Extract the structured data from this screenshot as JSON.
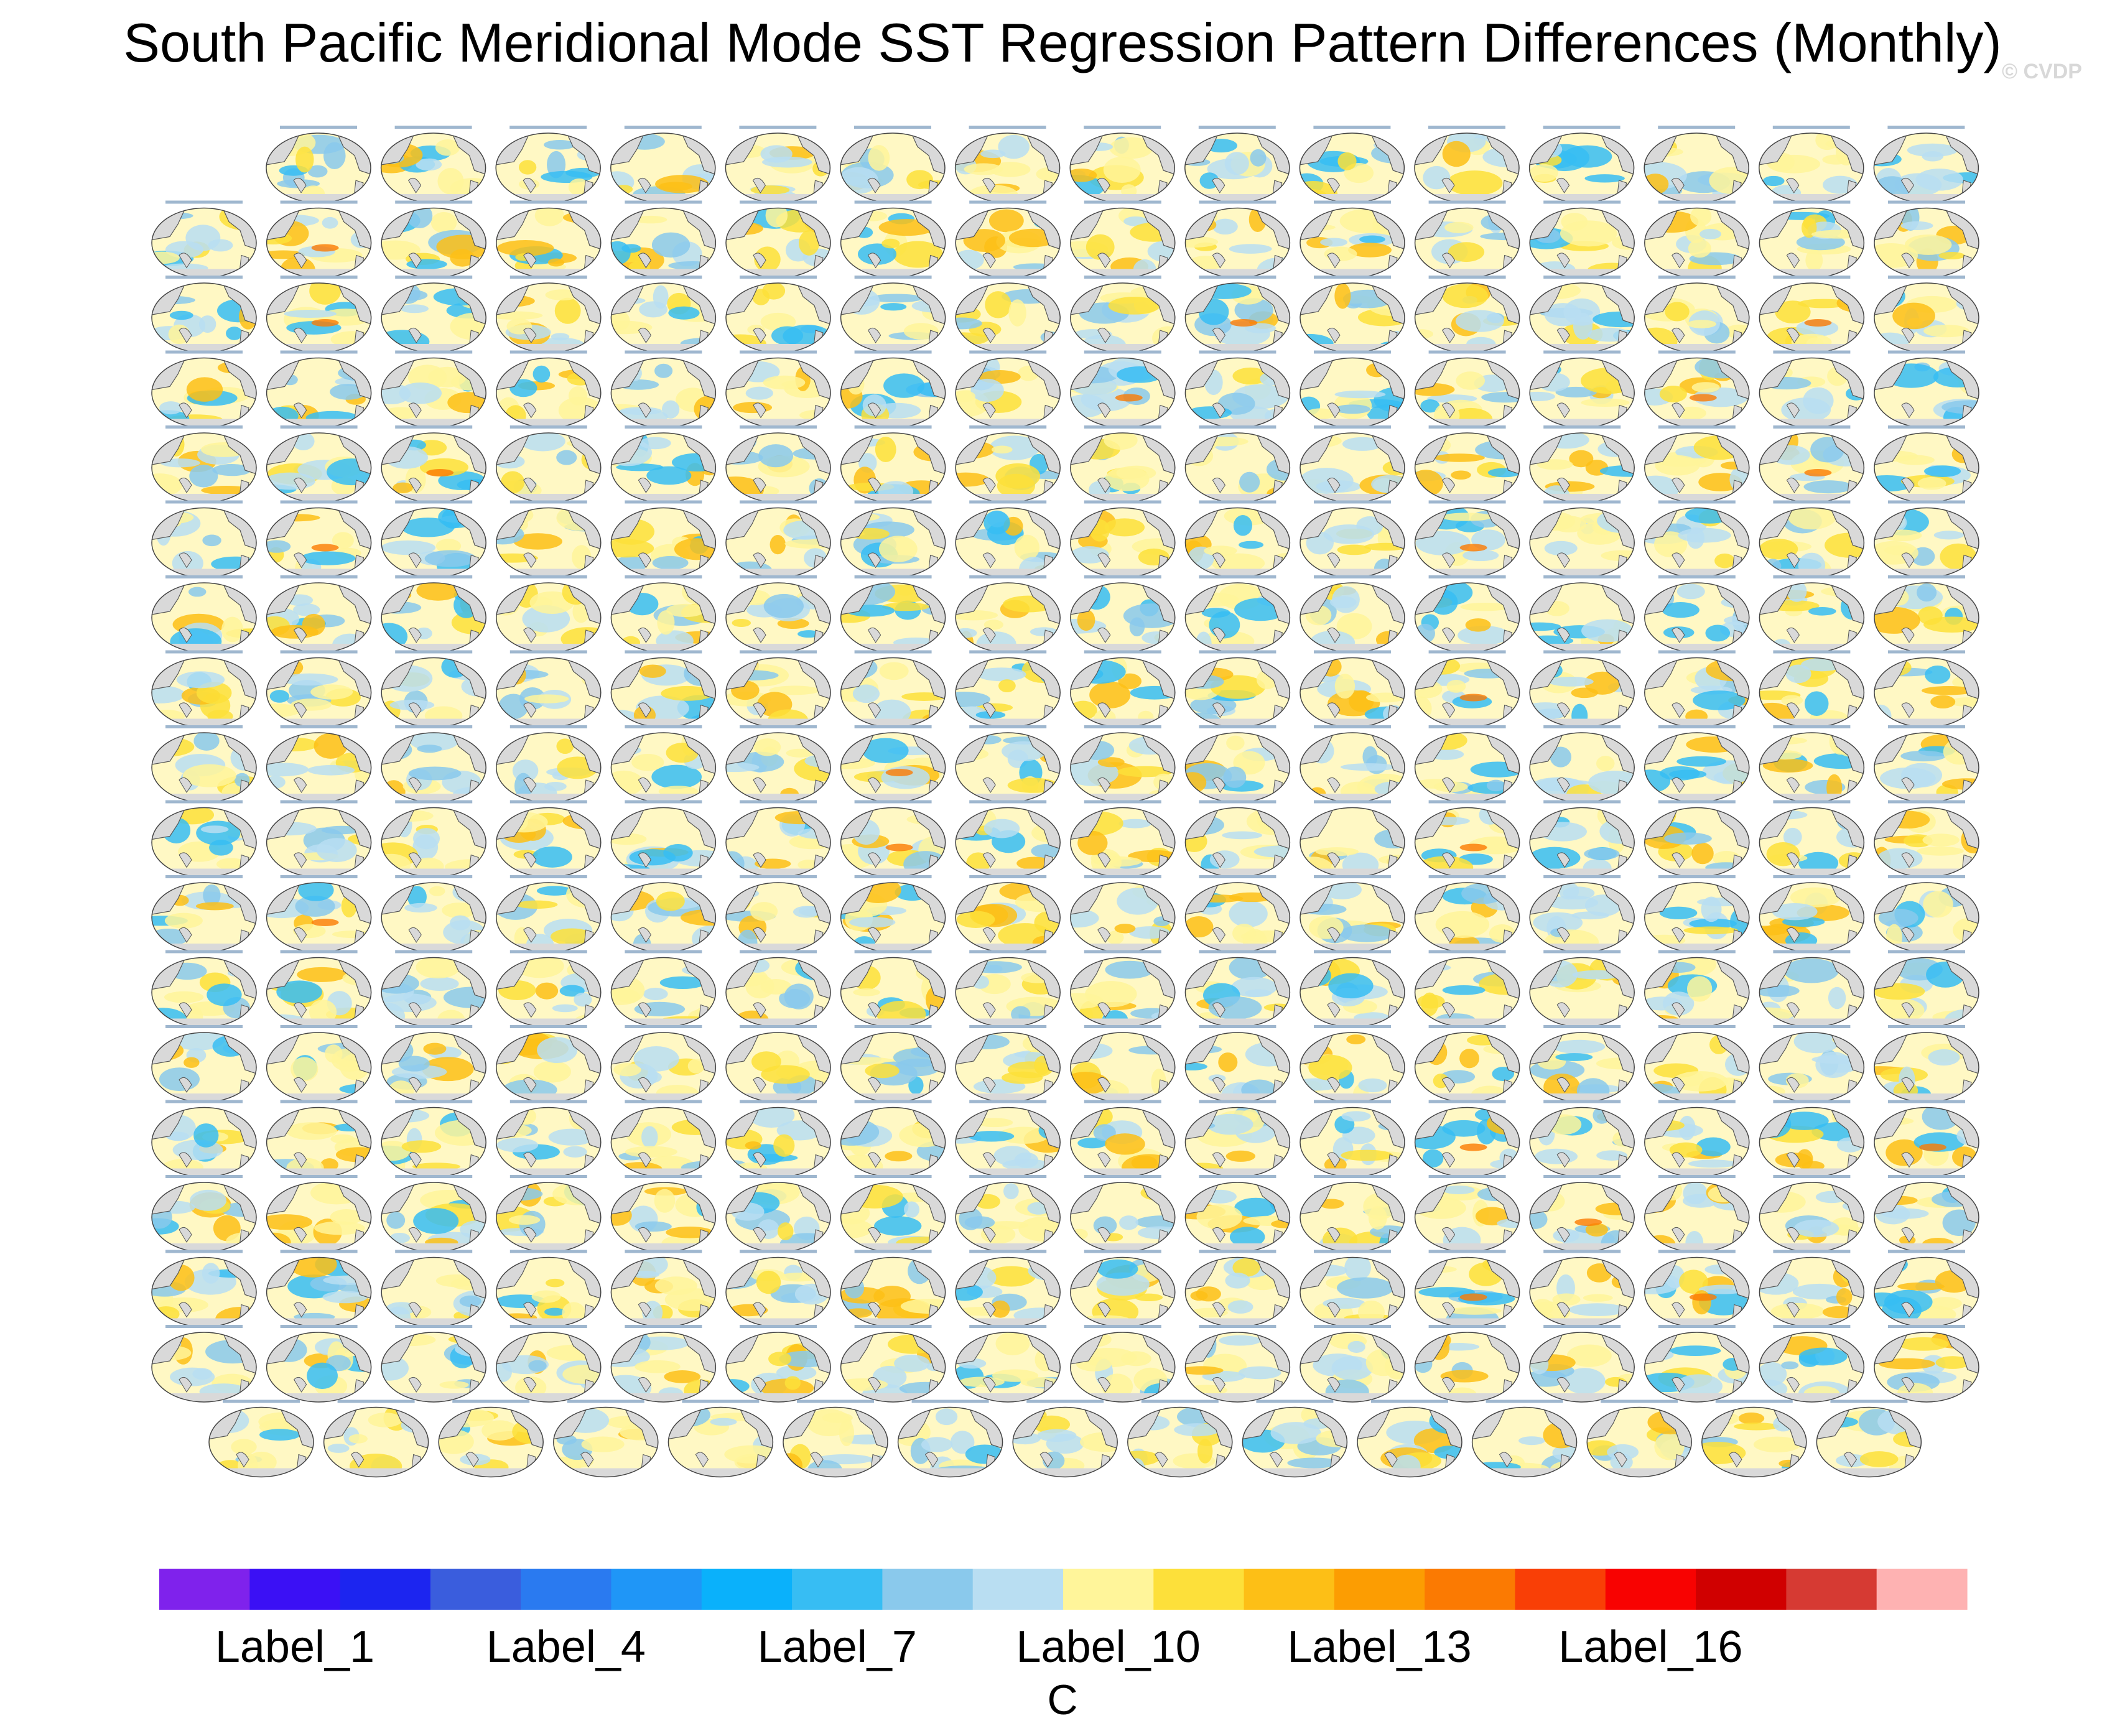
{
  "title": "South Pacific Meridional Mode SST Regression Pattern Differences (Monthly)",
  "watermark": "© CVDP",
  "colorbar": {
    "unit": "C",
    "labels": [
      {
        "index": 1,
        "text": "Label_1"
      },
      {
        "index": 4,
        "text": "Label_4"
      },
      {
        "index": 7,
        "text": "Label_7"
      },
      {
        "index": 10,
        "text": "Label_10"
      },
      {
        "index": 13,
        "text": "Label_13"
      },
      {
        "index": 16,
        "text": "Label_16"
      }
    ],
    "colors": [
      "#7f22ec",
      "#3b10f5",
      "#1c25f0",
      "#3a5ddd",
      "#2a7af0",
      "#1f96f7",
      "#0ab1fb",
      "#37bdf3",
      "#8ac9ec",
      "#b9def2",
      "#fff59a",
      "#fde03a",
      "#fdbf16",
      "#fc9d02",
      "#fb7a02",
      "#f93f06",
      "#f80201",
      "#d00000",
      "#d63a33",
      "#feb2b2"
    ]
  },
  "chart_data": {
    "type": "map-panel-grid",
    "title": "South Pacific Meridional Mode SST Regression Pattern Differences (Monthly)",
    "panel_rows": [
      15,
      16,
      16,
      16,
      16,
      16,
      16,
      16,
      16,
      16,
      16,
      16,
      16,
      16,
      16,
      16,
      16,
      15
    ],
    "panel_count": 286,
    "colorbar_levels": 20,
    "colorbar_unit": "C"
  }
}
